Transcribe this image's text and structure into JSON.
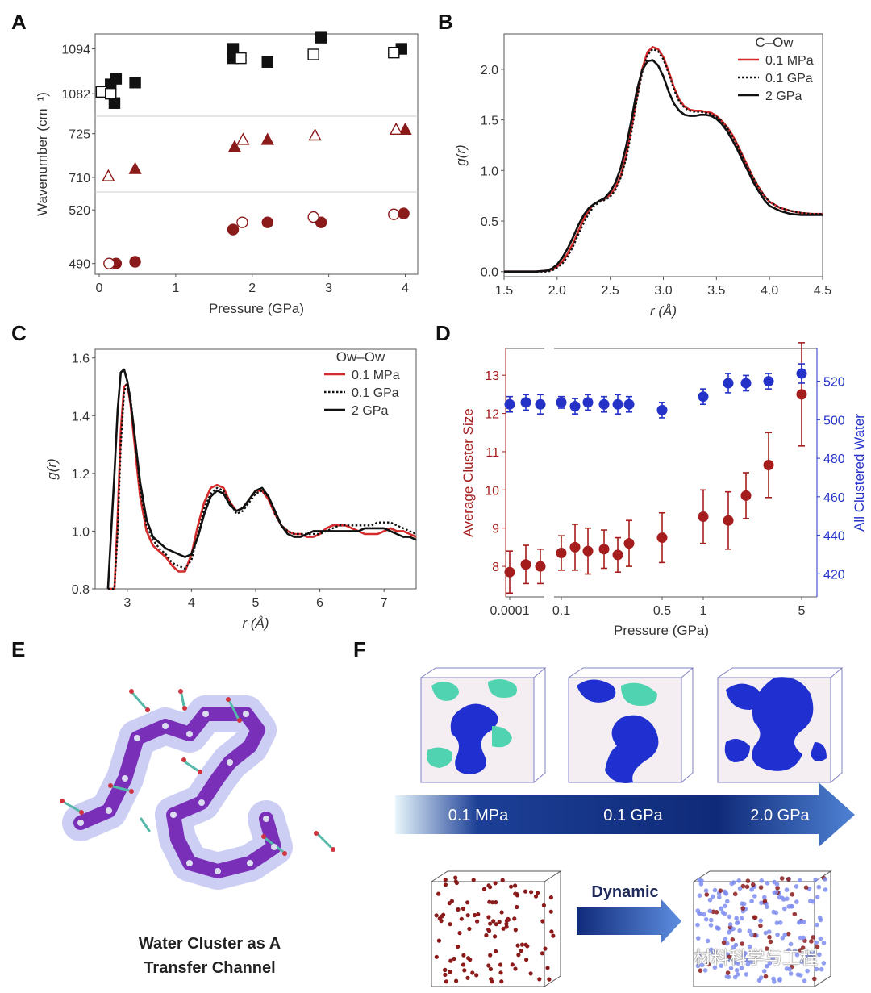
{
  "panels": {
    "A": "A",
    "B": "B",
    "C": "C",
    "D": "D",
    "E": "E",
    "F": "F"
  },
  "colors": {
    "red": "#a51c1c",
    "dark_red": "#8b1a1a",
    "blue": "#2432c8",
    "black": "#111111",
    "arrow_dark": "#0f2a78",
    "arrow_light": "#e8f6fb"
  },
  "chart_data": [
    {
      "id": "A",
      "type": "scatter",
      "xlabel": "Pressure (GPa)",
      "ylabel": "Wavenumber (cm⁻¹)",
      "xlim": [
        0,
        4.1
      ],
      "xticks": [
        "0",
        "1",
        "2",
        "3",
        "4"
      ],
      "segments": [
        {
          "name": "~1088 band",
          "ylim": [
            1076,
            1098
          ],
          "ticks": [
            "1082",
            "1094"
          ],
          "series": [
            {
              "name": "filled square",
              "marker": "square",
              "filled": true,
              "x": [
                0.15,
                0.22,
                0.2,
                0.47,
                1.75,
                2.2,
                2.9,
                3.95,
                1.75
              ],
              "y": [
                1084.5,
                1086,
                1079.5,
                1085,
                1094,
                1090.5,
                1097,
                1094,
                1091.5
              ]
            },
            {
              "name": "open square",
              "marker": "square",
              "filled": false,
              "x": [
                0.03,
                0.15,
                1.85,
                2.8,
                3.85
              ],
              "y": [
                1082.5,
                1082,
                1091.5,
                1092.5,
                1093
              ]
            }
          ]
        },
        {
          "name": "~718 band",
          "ylim": [
            705,
            731
          ],
          "ticks": [
            "710",
            "725"
          ],
          "series": [
            {
              "name": "filled triangle",
              "marker": "triangle",
              "filled": true,
              "x": [
                0.47,
                1.77,
                2.2,
                4.0
              ],
              "y": [
                713,
                720.5,
                723,
                726.5
              ]
            },
            {
              "name": "open triangle",
              "marker": "triangle",
              "filled": false,
              "x": [
                0.12,
                1.88,
                2.82,
                3.88
              ],
              "y": [
                710.5,
                723,
                724.5,
                726.5
              ]
            }
          ]
        },
        {
          "name": "~505 band",
          "ylim": [
            484,
            530
          ],
          "ticks": [
            "490",
            "520"
          ],
          "series": [
            {
              "name": "filled circle",
              "marker": "circle",
              "filled": true,
              "x": [
                0.22,
                0.47,
                1.75,
                2.2,
                2.9,
                3.98
              ],
              "y": [
                490,
                491,
                509,
                513,
                513,
                518
              ]
            },
            {
              "name": "open circle",
              "marker": "circle",
              "filled": false,
              "x": [
                0.13,
                1.87,
                2.8,
                3.85
              ],
              "y": [
                490,
                513,
                516,
                517.5
              ]
            }
          ]
        }
      ]
    },
    {
      "id": "B",
      "type": "line",
      "xlabel": "r (Å)",
      "ylabel": "g(r)",
      "xlim": [
        1.5,
        4.5
      ],
      "ylim": [
        -0.05,
        2.35
      ],
      "xticks": [
        "1.5",
        "2.0",
        "2.5",
        "3.0",
        "3.5",
        "4.0",
        "4.5"
      ],
      "yticks": [
        "0.0",
        "0.5",
        "1.0",
        "1.5",
        "2.0"
      ],
      "legend_title": "C–Ow",
      "legend_position": "top-right",
      "x": [
        1.5,
        1.7,
        1.8,
        1.9,
        1.95,
        2.0,
        2.05,
        2.1,
        2.15,
        2.2,
        2.25,
        2.3,
        2.35,
        2.4,
        2.45,
        2.5,
        2.55,
        2.6,
        2.65,
        2.7,
        2.75,
        2.8,
        2.85,
        2.9,
        2.95,
        3.0,
        3.05,
        3.1,
        3.15,
        3.2,
        3.25,
        3.3,
        3.35,
        3.4,
        3.45,
        3.5,
        3.55,
        3.6,
        3.65,
        3.7,
        3.75,
        3.8,
        3.85,
        3.9,
        3.95,
        4.0,
        4.1,
        4.2,
        4.3,
        4.4,
        4.5
      ],
      "series": [
        {
          "name": "0.1 MPa",
          "color": "#d42a2a",
          "dash": "solid",
          "values": [
            0,
            0,
            0,
            0.01,
            0.02,
            0.05,
            0.1,
            0.18,
            0.28,
            0.4,
            0.52,
            0.61,
            0.67,
            0.7,
            0.72,
            0.76,
            0.83,
            0.95,
            1.15,
            1.42,
            1.73,
            2.0,
            2.17,
            2.22,
            2.2,
            2.12,
            1.98,
            1.82,
            1.7,
            1.63,
            1.6,
            1.59,
            1.59,
            1.58,
            1.57,
            1.54,
            1.49,
            1.43,
            1.35,
            1.25,
            1.14,
            1.03,
            0.92,
            0.83,
            0.75,
            0.69,
            0.63,
            0.6,
            0.58,
            0.57,
            0.57
          ]
        },
        {
          "name": "0.1 GPa",
          "color": "#111111",
          "dash": "dot",
          "values": [
            0,
            0,
            0,
            0,
            0.01,
            0.04,
            0.08,
            0.15,
            0.25,
            0.37,
            0.48,
            0.58,
            0.65,
            0.69,
            0.71,
            0.74,
            0.81,
            0.93,
            1.12,
            1.38,
            1.7,
            1.97,
            2.14,
            2.2,
            2.18,
            2.1,
            1.96,
            1.8,
            1.68,
            1.62,
            1.59,
            1.58,
            1.58,
            1.57,
            1.56,
            1.53,
            1.49,
            1.42,
            1.34,
            1.24,
            1.13,
            1.02,
            0.92,
            0.83,
            0.75,
            0.69,
            0.63,
            0.6,
            0.58,
            0.57,
            0.57
          ]
        },
        {
          "name": "2 GPa",
          "color": "#111111",
          "dash": "solid",
          "values": [
            0,
            0,
            0,
            0.01,
            0.03,
            0.07,
            0.14,
            0.23,
            0.34,
            0.46,
            0.56,
            0.63,
            0.67,
            0.7,
            0.73,
            0.79,
            0.88,
            1.03,
            1.24,
            1.5,
            1.79,
            1.99,
            2.08,
            2.09,
            2.04,
            1.93,
            1.78,
            1.66,
            1.59,
            1.55,
            1.54,
            1.54,
            1.55,
            1.55,
            1.54,
            1.51,
            1.46,
            1.39,
            1.3,
            1.2,
            1.09,
            0.99,
            0.88,
            0.79,
            0.71,
            0.65,
            0.6,
            0.57,
            0.56,
            0.56,
            0.56
          ]
        }
      ]
    },
    {
      "id": "C",
      "type": "line",
      "xlabel": "r (Å)",
      "ylabel": "g(r)",
      "xlim": [
        2.5,
        7.5
      ],
      "ylim": [
        0.8,
        1.63
      ],
      "xticks": [
        "3",
        "4",
        "5",
        "6",
        "7"
      ],
      "yticks": [
        "0.8",
        "1.0",
        "1.2",
        "1.4",
        "1.6"
      ],
      "legend_title": "Ow–Ow",
      "legend_position": "top-right",
      "x": [
        2.7,
        2.8,
        2.85,
        2.9,
        2.95,
        3.0,
        3.05,
        3.1,
        3.2,
        3.3,
        3.4,
        3.5,
        3.6,
        3.7,
        3.8,
        3.9,
        4.0,
        4.1,
        4.2,
        4.3,
        4.4,
        4.5,
        4.6,
        4.7,
        4.8,
        4.9,
        5.0,
        5.1,
        5.2,
        5.3,
        5.4,
        5.5,
        5.6,
        5.7,
        5.8,
        5.9,
        6.0,
        6.1,
        6.2,
        6.3,
        6.4,
        6.5,
        6.6,
        6.7,
        6.8,
        6.9,
        7.0,
        7.1,
        7.2,
        7.3,
        7.4,
        7.5
      ],
      "series": [
        {
          "name": "0.1 MPa",
          "color": "#d42a2a",
          "dash": "solid",
          "values": [
            0.8,
            0.8,
            1.05,
            1.35,
            1.5,
            1.51,
            1.44,
            1.33,
            1.12,
            1.0,
            0.95,
            0.93,
            0.91,
            0.88,
            0.86,
            0.86,
            0.92,
            1.02,
            1.1,
            1.15,
            1.16,
            1.15,
            1.1,
            1.07,
            1.08,
            1.11,
            1.14,
            1.14,
            1.11,
            1.06,
            1.02,
            1.0,
            0.99,
            0.99,
            0.98,
            0.98,
            0.99,
            1.01,
            1.02,
            1.02,
            1.02,
            1.01,
            1.0,
            0.99,
            0.99,
            0.99,
            1.0,
            1.01,
            1.0,
            1.0,
            0.99,
            0.98
          ]
        },
        {
          "name": "0.1 GPa",
          "color": "#111111",
          "dash": "dot",
          "values": [
            0.8,
            0.8,
            1.0,
            1.3,
            1.48,
            1.52,
            1.46,
            1.36,
            1.15,
            1.02,
            0.97,
            0.94,
            0.92,
            0.89,
            0.88,
            0.87,
            0.9,
            0.99,
            1.08,
            1.13,
            1.15,
            1.14,
            1.1,
            1.06,
            1.07,
            1.1,
            1.13,
            1.14,
            1.12,
            1.06,
            1.02,
            1.0,
            0.99,
            0.99,
            0.99,
            0.99,
            0.99,
            1.0,
            1.01,
            1.02,
            1.02,
            1.02,
            1.02,
            1.02,
            1.02,
            1.03,
            1.03,
            1.03,
            1.02,
            1.01,
            1.0,
            0.99
          ]
        },
        {
          "name": "2 GPa",
          "color": "#111111",
          "dash": "solid",
          "values": [
            0.8,
            1.2,
            1.42,
            1.55,
            1.56,
            1.52,
            1.45,
            1.36,
            1.17,
            1.04,
            0.98,
            0.96,
            0.94,
            0.93,
            0.92,
            0.91,
            0.92,
            0.98,
            1.06,
            1.12,
            1.14,
            1.13,
            1.09,
            1.07,
            1.08,
            1.11,
            1.14,
            1.15,
            1.12,
            1.07,
            1.02,
            0.99,
            0.98,
            0.98,
            0.99,
            1.0,
            1.0,
            1.0,
            1.0,
            1.0,
            1.0,
            1.0,
            1.0,
            1.01,
            1.01,
            1.01,
            1.01,
            1.0,
            0.99,
            0.98,
            0.98,
            0.97
          ]
        }
      ]
    },
    {
      "id": "D",
      "type": "scatter",
      "xlabel": "Pressure (GPa)",
      "ylabel_left": "Average Cluster Size",
      "ylabel_right": "All Clustered Water",
      "xticks": [
        "0.0001",
        "0.1",
        "0.5",
        "1",
        "5"
      ],
      "yticks_left": [
        "8",
        "9",
        "10",
        "11",
        "12",
        "13"
      ],
      "yticks_right": [
        "420",
        "440",
        "460",
        "480",
        "500",
        "520"
      ],
      "ylim_left": [
        7.2,
        13.7
      ],
      "ylim_right": [
        408,
        537
      ],
      "x_positions": [
        "0.0001",
        "0.0001+",
        "0.0001++",
        "0.1",
        "0.125",
        "0.15",
        "0.2",
        "0.25",
        "0.3",
        "0.5",
        "1",
        "1.5",
        "2",
        "3",
        "5"
      ],
      "series": [
        {
          "name": "Average Cluster Size",
          "axis": "left",
          "color": "#a51c1c",
          "values": [
            7.85,
            8.05,
            8.0,
            8.35,
            8.5,
            8.4,
            8.45,
            8.3,
            8.6,
            8.75,
            9.3,
            9.2,
            9.85,
            10.65,
            12.5
          ],
          "errors": [
            0.55,
            0.5,
            0.45,
            0.45,
            0.6,
            0.6,
            0.5,
            0.45,
            0.6,
            0.65,
            0.7,
            0.75,
            0.6,
            0.85,
            1.35
          ]
        },
        {
          "name": "All Clustered Water",
          "axis": "right",
          "color": "#2432c8",
          "values": [
            508,
            509,
            508,
            509,
            507,
            509,
            508,
            508,
            508,
            505,
            512,
            519,
            519,
            520,
            524
          ],
          "errors": [
            4,
            4,
            5,
            3,
            4,
            4,
            4,
            5,
            4,
            4,
            4,
            5,
            4,
            4,
            5
          ]
        }
      ]
    }
  ],
  "panel_E": {
    "caption_line1": "Water Cluster as A",
    "caption_line2": "Transfer Channel"
  },
  "panel_F": {
    "arrow_labels": [
      "0.1 MPa",
      "0.1 GPa",
      "2.0 GPa"
    ],
    "dynamic_label": "Dynamic"
  },
  "watermark": "材料科学与工程"
}
